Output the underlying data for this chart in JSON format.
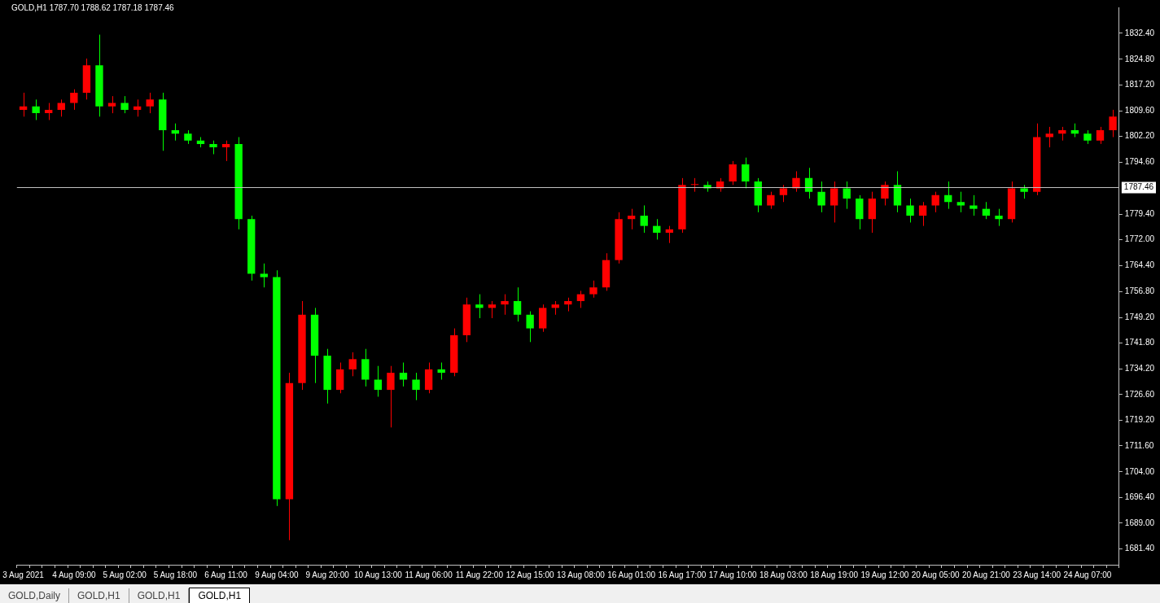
{
  "chart_data": {
    "type": "candlestick",
    "title": "GOLD,H1 1787.70 1788.62 1787.18 1787.46",
    "categories": [
      "3 Aug 2021",
      null,
      null,
      null,
      "4 Aug 09:00",
      null,
      null,
      null,
      "5 Aug 02:00",
      null,
      null,
      null,
      "5 Aug 18:00",
      null,
      null,
      null,
      "6 Aug 11:00",
      null,
      null,
      null,
      "9 Aug 04:00",
      null,
      null,
      null,
      "9 Aug 20:00",
      null,
      null,
      null,
      "10 Aug 13:00",
      null,
      null,
      null,
      "11 Aug 06:00",
      null,
      null,
      null,
      "11 Aug 22:00",
      null,
      null,
      null,
      "12 Aug 15:00",
      null,
      null,
      null,
      "13 Aug 08:00",
      null,
      null,
      null,
      "16 Aug 01:00",
      null,
      null,
      null,
      "16 Aug 17:00",
      null,
      null,
      null,
      "17 Aug 10:00",
      null,
      null,
      null,
      "18 Aug 03:00",
      null,
      null,
      null,
      "18 Aug 19:00",
      null,
      null,
      null,
      "19 Aug 12:00",
      null,
      null,
      null,
      "20 Aug 05:00",
      null,
      null,
      null,
      "20 Aug 21:00",
      null,
      null,
      null,
      "23 Aug 14:00",
      null,
      null,
      null,
      "24 Aug 07:00",
      null,
      null
    ],
    "ohlc": [
      [
        1810,
        1815,
        1808,
        1811
      ],
      [
        1811,
        1813,
        1807,
        1809
      ],
      [
        1809,
        1812,
        1807,
        1810
      ],
      [
        1810,
        1813,
        1808,
        1812
      ],
      [
        1812,
        1816,
        1810,
        1815
      ],
      [
        1815,
        1825,
        1813,
        1823
      ],
      [
        1823,
        1832,
        1808,
        1811
      ],
      [
        1811,
        1814,
        1809,
        1812
      ],
      [
        1812,
        1814,
        1809,
        1810
      ],
      [
        1810,
        1813,
        1808,
        1811
      ],
      [
        1811,
        1815,
        1809,
        1813
      ],
      [
        1813,
        1815,
        1798,
        1804
      ],
      [
        1804,
        1806,
        1801,
        1803
      ],
      [
        1803,
        1804,
        1800,
        1801
      ],
      [
        1801,
        1802,
        1799,
        1800
      ],
      [
        1800,
        1801,
        1797,
        1799
      ],
      [
        1799,
        1801,
        1795,
        1800
      ],
      [
        1800,
        1802,
        1775,
        1778
      ],
      [
        1778,
        1779,
        1760,
        1762
      ],
      [
        1762,
        1765,
        1758,
        1761
      ],
      [
        1761,
        1763,
        1694,
        1696
      ],
      [
        1696,
        1733,
        1684,
        1730
      ],
      [
        1730,
        1754,
        1728,
        1750
      ],
      [
        1750,
        1752,
        1730,
        1738
      ],
      [
        1738,
        1740,
        1724,
        1728
      ],
      [
        1728,
        1736,
        1727,
        1734
      ],
      [
        1734,
        1739,
        1732,
        1737
      ],
      [
        1737,
        1740,
        1729,
        1731
      ],
      [
        1731,
        1735,
        1726,
        1728
      ],
      [
        1728,
        1735,
        1717,
        1733
      ],
      [
        1733,
        1736,
        1729,
        1731
      ],
      [
        1731,
        1733,
        1725,
        1728
      ],
      [
        1728,
        1736,
        1727,
        1734
      ],
      [
        1734,
        1736,
        1731,
        1733
      ],
      [
        1733,
        1746,
        1732,
        1744
      ],
      [
        1744,
        1755,
        1742,
        1753
      ],
      [
        1753,
        1756,
        1749,
        1752
      ],
      [
        1752,
        1754,
        1749,
        1753
      ],
      [
        1753,
        1756,
        1750,
        1754
      ],
      [
        1754,
        1758,
        1748,
        1750
      ],
      [
        1750,
        1751,
        1742,
        1746
      ],
      [
        1746,
        1753,
        1745,
        1752
      ],
      [
        1752,
        1754,
        1750,
        1753
      ],
      [
        1753,
        1755,
        1751,
        1754
      ],
      [
        1754,
        1757,
        1752,
        1756
      ],
      [
        1756,
        1760,
        1755,
        1758
      ],
      [
        1758,
        1768,
        1757,
        1766
      ],
      [
        1766,
        1780,
        1765,
        1778
      ],
      [
        1778,
        1781,
        1775,
        1779
      ],
      [
        1779,
        1782,
        1774,
        1776
      ],
      [
        1776,
        1778,
        1772,
        1774
      ],
      [
        1774,
        1776,
        1771,
        1775
      ],
      [
        1775,
        1790,
        1774,
        1788
      ],
      [
        1788,
        1790,
        1786,
        1788
      ],
      [
        1788,
        1789,
        1786,
        1787
      ],
      [
        1787,
        1790,
        1786,
        1789
      ],
      [
        1789,
        1795,
        1788,
        1794
      ],
      [
        1794,
        1796,
        1787,
        1789
      ],
      [
        1789,
        1790,
        1780,
        1782
      ],
      [
        1782,
        1786,
        1781,
        1785
      ],
      [
        1785,
        1788,
        1783,
        1787
      ],
      [
        1787,
        1792,
        1786,
        1790
      ],
      [
        1790,
        1793,
        1784,
        1786
      ],
      [
        1786,
        1789,
        1780,
        1782
      ],
      [
        1782,
        1789,
        1777,
        1787
      ],
      [
        1787,
        1789,
        1781,
        1784
      ],
      [
        1784,
        1785,
        1775,
        1778
      ],
      [
        1778,
        1786,
        1774,
        1784
      ],
      [
        1784,
        1789,
        1782,
        1788
      ],
      [
        1788,
        1792,
        1780,
        1782
      ],
      [
        1782,
        1784,
        1777,
        1779
      ],
      [
        1779,
        1783,
        1776,
        1782
      ],
      [
        1782,
        1786,
        1780,
        1785
      ],
      [
        1785,
        1789,
        1781,
        1783
      ],
      [
        1783,
        1786,
        1780,
        1782
      ],
      [
        1782,
        1785,
        1779,
        1781
      ],
      [
        1781,
        1783,
        1778,
        1779
      ],
      [
        1779,
        1781,
        1776,
        1778
      ],
      [
        1778,
        1789,
        1777,
        1787
      ],
      [
        1787,
        1788,
        1784,
        1786
      ],
      [
        1786,
        1806,
        1785,
        1802
      ],
      [
        1802,
        1805,
        1799,
        1803
      ],
      [
        1803,
        1805,
        1801,
        1804
      ],
      [
        1804,
        1806,
        1802,
        1803
      ],
      [
        1803,
        1804,
        1800,
        1801
      ],
      [
        1801,
        1805,
        1800,
        1804
      ],
      [
        1804,
        1810,
        1802,
        1808
      ]
    ],
    "colors": [
      "#ff0000",
      "#00ff00",
      "#ff0000",
      "#ff0000",
      "#ff0000",
      "#ff0000",
      "#00ff00",
      "#ff0000",
      "#00ff00",
      "#ff0000",
      "#ff0000",
      "#00ff00",
      "#00ff00",
      "#00ff00",
      "#00ff00",
      "#00ff00",
      "#ff0000",
      "#00ff00",
      "#00ff00",
      "#00ff00",
      "#00ff00",
      "#ff0000",
      "#ff0000",
      "#00ff00",
      "#00ff00",
      "#ff0000",
      "#ff0000",
      "#00ff00",
      "#00ff00",
      "#ff0000",
      "#00ff00",
      "#00ff00",
      "#ff0000",
      "#00ff00",
      "#ff0000",
      "#ff0000",
      "#00ff00",
      "#ff0000",
      "#ff0000",
      "#00ff00",
      "#00ff00",
      "#ff0000",
      "#ff0000",
      "#ff0000",
      "#ff0000",
      "#ff0000",
      "#ff0000",
      "#ff0000",
      "#ff0000",
      "#00ff00",
      "#00ff00",
      "#ff0000",
      "#ff0000",
      "#ff0000",
      "#00ff00",
      "#ff0000",
      "#ff0000",
      "#00ff00",
      "#00ff00",
      "#ff0000",
      "#ff0000",
      "#ff0000",
      "#00ff00",
      "#00ff00",
      "#ff0000",
      "#00ff00",
      "#00ff00",
      "#ff0000",
      "#ff0000",
      "#00ff00",
      "#00ff00",
      "#ff0000",
      "#ff0000",
      "#00ff00",
      "#00ff00",
      "#00ff00",
      "#00ff00",
      "#00ff00",
      "#ff0000",
      "#00ff00",
      "#ff0000",
      "#ff0000",
      "#ff0000",
      "#00ff00",
      "#00ff00",
      "#ff0000",
      "#ff0000"
    ],
    "ylim": [
      1676.8,
      1840
    ],
    "yticks": [
      {
        "value": 1681.4,
        "label": "1681.40"
      },
      {
        "value": 1689,
        "label": "1689.00"
      },
      {
        "value": 1696.4,
        "label": "1696.40"
      },
      {
        "value": 1704,
        "label": "1704.00"
      },
      {
        "value": 1711.6,
        "label": "1711.60"
      },
      {
        "value": 1719.2,
        "label": "1719.20"
      },
      {
        "value": 1726.6,
        "label": "1726.60"
      },
      {
        "value": 1734.2,
        "label": "1734.20"
      },
      {
        "value": 1741.8,
        "label": "1741.80"
      },
      {
        "value": 1749.2,
        "label": "1749.20"
      },
      {
        "value": 1756.8,
        "label": "1756.80"
      },
      {
        "value": 1764.4,
        "label": "1764.40"
      },
      {
        "value": 1772,
        "label": "1772.00"
      },
      {
        "value": 1779.4,
        "label": "1779.40"
      },
      {
        "value": 1794.6,
        "label": "1794.60"
      },
      {
        "value": 1802.2,
        "label": "1802.20"
      },
      {
        "value": 1809.6,
        "label": "1809.60"
      },
      {
        "value": 1817.2,
        "label": "1817.20"
      },
      {
        "value": 1824.8,
        "label": "1824.80"
      },
      {
        "value": 1832.4,
        "label": "1832.40"
      }
    ],
    "ref_lines": [
      {
        "axis": "y",
        "value": 1787.46,
        "label": "1787.46",
        "color": "#c0c0c0"
      }
    ],
    "annotations": [
      "GOLD,Daily",
      "GOLD,H1",
      "GOLD,H1",
      "GOLD,H1"
    ],
    "grid": false,
    "legend": false
  }
}
